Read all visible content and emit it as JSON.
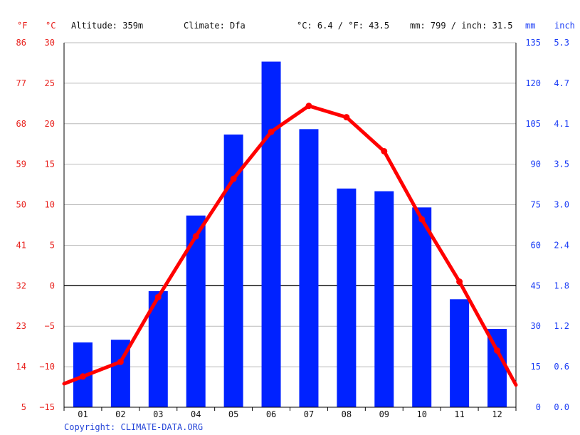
{
  "header": {
    "f_unit": "°F",
    "c_unit": "°C",
    "altitude": "Altitude: 359m",
    "climate": "Climate: Dfa",
    "temp_avg": "°C: 6.4 / °F: 43.5",
    "precip_total": "mm: 799 / inch: 31.5",
    "mm_unit": "mm",
    "inch_unit": "inch"
  },
  "footer": {
    "copyright": "Copyright: CLIMATE-DATA.ORG"
  },
  "colors": {
    "bars": "#0022ff",
    "line": "#ff0000",
    "grid": "#bbbbbb",
    "zero_line": "#000000",
    "axis_red": "#e8201c",
    "axis_blue": "#1a3cf5"
  },
  "chart_data": {
    "type": "bar",
    "categories": [
      "01",
      "02",
      "03",
      "04",
      "05",
      "06",
      "07",
      "08",
      "09",
      "10",
      "11",
      "12"
    ],
    "series": [
      {
        "axis": "right",
        "unit": "mm",
        "values": [
          24,
          25,
          43,
          71,
          101,
          128,
          103,
          81,
          80,
          74,
          40,
          29
        ]
      },
      {
        "type": "line",
        "axis": "left",
        "unit": "°C",
        "values": [
          -11.2,
          -9.4,
          -1.4,
          6.1,
          13.2,
          19.0,
          22.2,
          20.8,
          16.6,
          8.2,
          0.5,
          -8.0
        ]
      }
    ],
    "y_left": {
      "ylim": [
        -15,
        30
      ],
      "ticks_c": [
        "30",
        "25",
        "20",
        "15",
        "10",
        "5",
        "0",
        "−5",
        "−10",
        "−15"
      ],
      "ticks_f": [
        "86",
        "77",
        "68",
        "59",
        "50",
        "41",
        "32",
        "23",
        "14",
        "5"
      ]
    },
    "y_right": {
      "ylim": [
        0,
        135
      ],
      "ticks_mm": [
        "135",
        "120",
        "105",
        "90",
        "75",
        "60",
        "45",
        "30",
        "15",
        "0"
      ],
      "ticks_inch": [
        "5.3",
        "4.7",
        "4.1",
        "3.5",
        "3.0",
        "2.4",
        "1.8",
        "1.2",
        "0.6",
        "0.0"
      ]
    },
    "grid": true,
    "legend": "none"
  }
}
